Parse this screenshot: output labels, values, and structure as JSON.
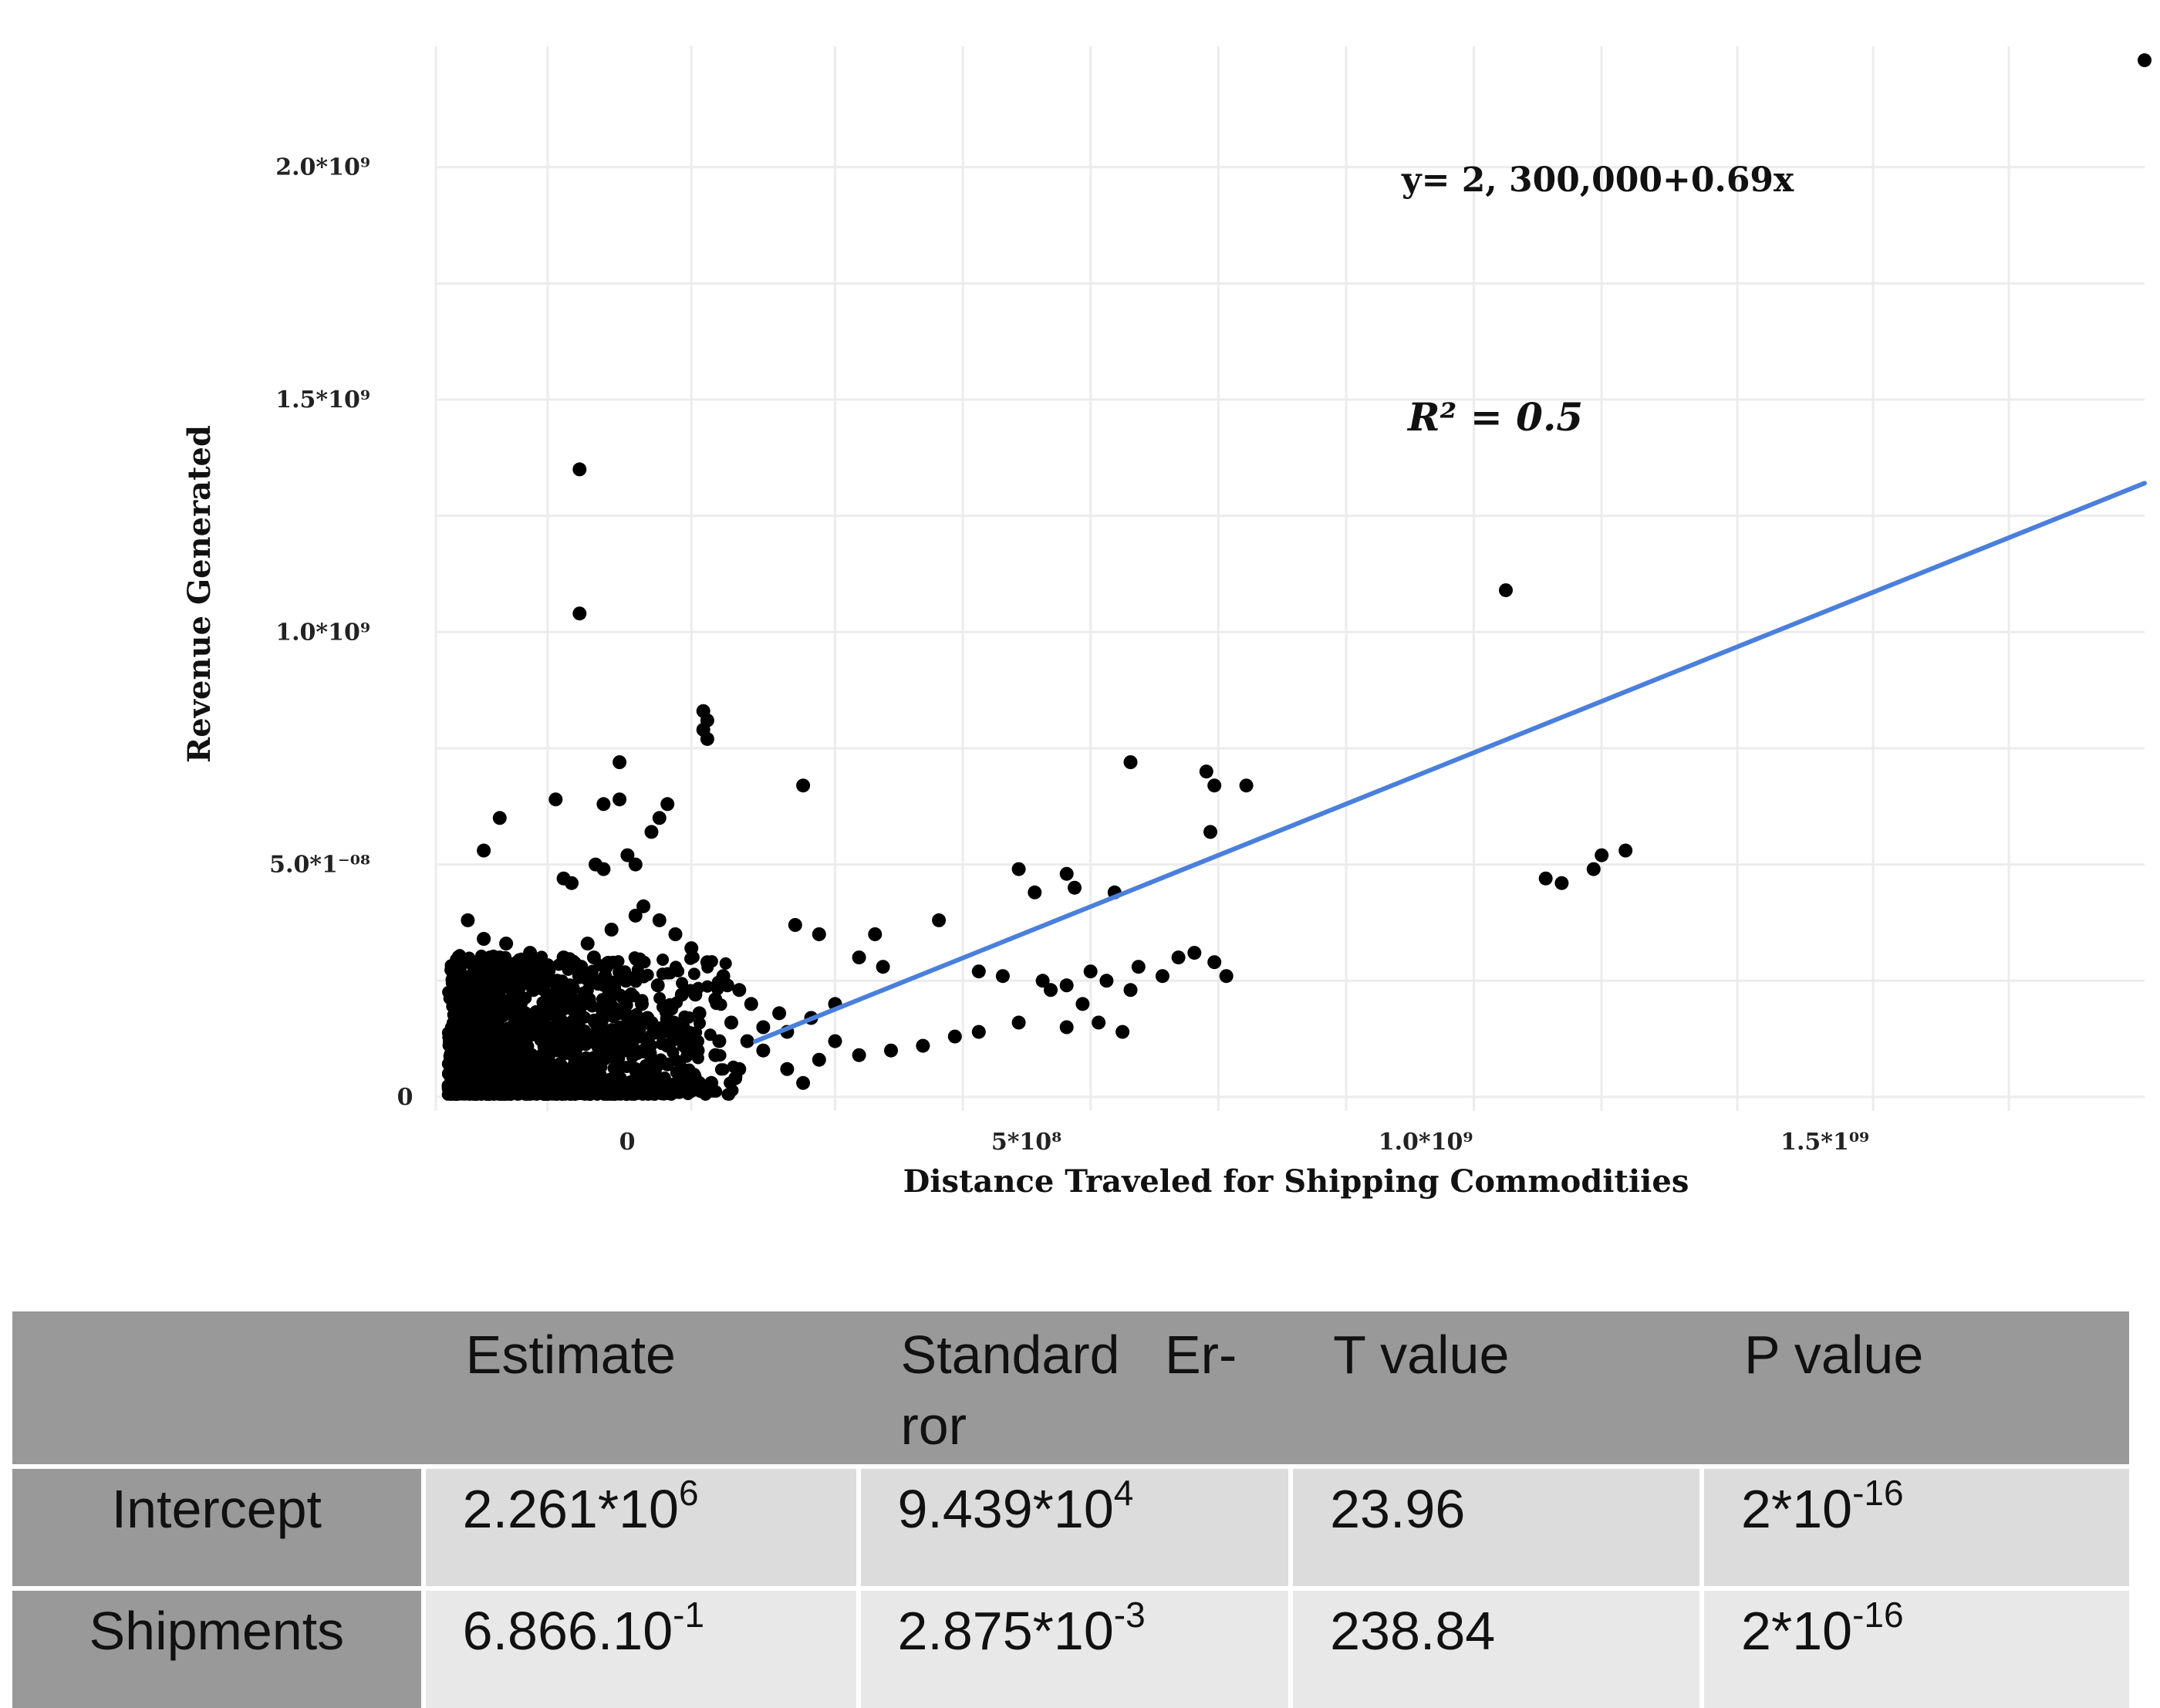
{
  "chart_data": {
    "type": "scatter",
    "title": "",
    "xlabel": "Distance Traveled for Shipping Commoditiies",
    "ylabel": "Revenue Generated",
    "xlim": [
      -230000000,
      1910000000
    ],
    "ylim": [
      -30000000,
      2260000000
    ],
    "x_ticks": [
      {
        "value": 0,
        "label": "0"
      },
      {
        "value": 500000000,
        "label": "5*10⁸"
      },
      {
        "value": 1000000000,
        "label": "1.0*10⁹"
      },
      {
        "value": 1500000000,
        "label": "1.5*1⁰⁹"
      }
    ],
    "y_ticks": [
      {
        "value": 0,
        "label": "0"
      },
      {
        "value": 500000000,
        "label": "5.0*1⁻⁰⁸"
      },
      {
        "value": 1000000000,
        "label": "1.0*10⁹"
      },
      {
        "value": 1500000000,
        "label": "1.5*10⁹"
      },
      {
        "value": 2000000000,
        "label": "2.0*10⁹"
      }
    ],
    "grid": true,
    "regression": {
      "intercept": 2300000,
      "slope": 0.69,
      "color": "#4a7fdc",
      "x_range": [
        170000000,
        1910000000
      ]
    },
    "annotations": {
      "equation": "y= 2, 300,000+0.69x",
      "r2": "R² = 0.5"
    },
    "point_color": "#000000",
    "series": [
      {
        "name": "observations",
        "points": [
          [
            -50000000,
            1350000000
          ],
          [
            -50000000,
            1040000000
          ],
          [
            1110000000,
            1090000000
          ],
          [
            1910000000,
            2230000000
          ],
          [
            105000000,
            830000000
          ],
          [
            110000000,
            810000000
          ],
          [
            105000000,
            790000000
          ],
          [
            110000000,
            770000000
          ],
          [
            640000000,
            720000000
          ],
          [
            735000000,
            700000000
          ],
          [
            745000000,
            670000000
          ],
          [
            785000000,
            670000000
          ],
          [
            230000000,
            670000000
          ],
          [
            740000000,
            570000000
          ],
          [
            0,
            720000000
          ],
          [
            0,
            640000000
          ],
          [
            -20000000,
            630000000
          ],
          [
            -80000000,
            640000000
          ],
          [
            -150000000,
            600000000
          ],
          [
            60000000,
            630000000
          ],
          [
            50000000,
            600000000
          ],
          [
            40000000,
            570000000
          ],
          [
            -170000000,
            530000000
          ],
          [
            10000000,
            520000000
          ],
          [
            20000000,
            500000000
          ],
          [
            -30000000,
            500000000
          ],
          [
            -70000000,
            470000000
          ],
          [
            -60000000,
            460000000
          ],
          [
            -20000000,
            490000000
          ],
          [
            1160000000,
            470000000
          ],
          [
            1180000000,
            460000000
          ],
          [
            1220000000,
            490000000
          ],
          [
            1230000000,
            520000000
          ],
          [
            1260000000,
            530000000
          ],
          [
            500000000,
            490000000
          ],
          [
            560000000,
            480000000
          ],
          [
            570000000,
            450000000
          ],
          [
            620000000,
            440000000
          ],
          [
            520000000,
            440000000
          ],
          [
            400000000,
            380000000
          ],
          [
            220000000,
            370000000
          ],
          [
            250000000,
            350000000
          ],
          [
            320000000,
            350000000
          ],
          [
            300000000,
            300000000
          ],
          [
            330000000,
            280000000
          ],
          [
            450000000,
            270000000
          ],
          [
            480000000,
            260000000
          ],
          [
            530000000,
            250000000
          ],
          [
            560000000,
            240000000
          ],
          [
            590000000,
            270000000
          ],
          [
            610000000,
            250000000
          ],
          [
            640000000,
            230000000
          ],
          [
            680000000,
            260000000
          ],
          [
            700000000,
            300000000
          ],
          [
            745000000,
            290000000
          ],
          [
            760000000,
            260000000
          ],
          [
            720000000,
            310000000
          ],
          [
            650000000,
            280000000
          ],
          [
            540000000,
            230000000
          ],
          [
            580000000,
            200000000
          ],
          [
            600000000,
            160000000
          ],
          [
            630000000,
            140000000
          ],
          [
            560000000,
            150000000
          ],
          [
            500000000,
            160000000
          ],
          [
            450000000,
            140000000
          ],
          [
            420000000,
            130000000
          ],
          [
            380000000,
            110000000
          ],
          [
            340000000,
            100000000
          ],
          [
            300000000,
            90000000
          ],
          [
            270000000,
            120000000
          ],
          [
            250000000,
            80000000
          ],
          [
            210000000,
            60000000
          ],
          [
            230000000,
            30000000
          ],
          [
            200000000,
            180000000
          ],
          [
            180000000,
            150000000
          ],
          [
            160000000,
            120000000
          ],
          [
            140000000,
            160000000
          ],
          [
            120000000,
            210000000
          ],
          [
            100000000,
            180000000
          ],
          [
            80000000,
            140000000
          ],
          [
            60000000,
            110000000
          ],
          [
            40000000,
            80000000
          ],
          [
            20000000,
            60000000
          ],
          [
            0,
            40000000
          ],
          [
            -20000000,
            20000000
          ],
          [
            -50000000,
            30000000
          ],
          [
            -80000000,
            60000000
          ],
          [
            -110000000,
            90000000
          ],
          [
            -140000000,
            120000000
          ],
          [
            -170000000,
            150000000
          ],
          [
            -190000000,
            180000000
          ],
          [
            -160000000,
            210000000
          ],
          [
            -130000000,
            240000000
          ],
          [
            -100000000,
            270000000
          ],
          [
            -70000000,
            300000000
          ],
          [
            -40000000,
            330000000
          ],
          [
            -10000000,
            360000000
          ],
          [
            20000000,
            390000000
          ],
          [
            -190000000,
            380000000
          ],
          [
            -170000000,
            340000000
          ],
          [
            -150000000,
            300000000
          ],
          [
            -120000000,
            260000000
          ],
          [
            -90000000,
            220000000
          ],
          [
            -60000000,
            190000000
          ],
          [
            -30000000,
            160000000
          ],
          [
            0,
            130000000
          ],
          [
            30000000,
            100000000
          ],
          [
            60000000,
            70000000
          ],
          [
            90000000,
            50000000
          ],
          [
            120000000,
            90000000
          ],
          [
            150000000,
            60000000
          ],
          [
            180000000,
            100000000
          ],
          [
            210000000,
            140000000
          ],
          [
            240000000,
            170000000
          ],
          [
            270000000,
            200000000
          ],
          [
            150000000,
            230000000
          ],
          [
            130000000,
            260000000
          ],
          [
            110000000,
            290000000
          ],
          [
            90000000,
            320000000
          ],
          [
            70000000,
            350000000
          ],
          [
            50000000,
            380000000
          ],
          [
            30000000,
            410000000
          ],
          [
            -200000000,
            20000000
          ],
          [
            -195000000,
            60000000
          ],
          [
            -185000000,
            100000000
          ],
          [
            -175000000,
            140000000
          ],
          [
            -165000000,
            40000000
          ],
          [
            -155000000,
            80000000
          ],
          [
            -145000000,
            20000000
          ],
          [
            -135000000,
            60000000
          ],
          [
            -125000000,
            100000000
          ],
          [
            -115000000,
            140000000
          ],
          [
            -105000000,
            30000000
          ],
          [
            -95000000,
            70000000
          ],
          [
            -85000000,
            110000000
          ],
          [
            -75000000,
            150000000
          ],
          [
            -65000000,
            40000000
          ],
          [
            -55000000,
            90000000
          ],
          [
            -45000000,
            130000000
          ],
          [
            -35000000,
            50000000
          ],
          [
            -25000000,
            100000000
          ],
          [
            -15000000,
            140000000
          ],
          [
            -5000000,
            60000000
          ],
          [
            5000000,
            100000000
          ],
          [
            15000000,
            20000000
          ],
          [
            25000000,
            130000000
          ],
          [
            35000000,
            170000000
          ],
          [
            45000000,
            30000000
          ],
          [
            55000000,
            150000000
          ],
          [
            65000000,
            190000000
          ],
          [
            75000000,
            40000000
          ],
          [
            85000000,
            120000000
          ],
          [
            95000000,
            220000000
          ],
          [
            115000000,
            30000000
          ],
          [
            125000000,
            120000000
          ],
          [
            135000000,
            240000000
          ],
          [
            145000000,
            40000000
          ],
          [
            165000000,
            200000000
          ],
          [
            -200000000,
            140000000
          ],
          [
            -198000000,
            100000000
          ],
          [
            -192000000,
            40000000
          ],
          [
            -188000000,
            220000000
          ],
          [
            -182000000,
            10000000
          ],
          [
            -178000000,
            260000000
          ],
          [
            -172000000,
            90000000
          ],
          [
            -168000000,
            190000000
          ],
          [
            -162000000,
            300000000
          ],
          [
            -158000000,
            10000000
          ],
          [
            -152000000,
            170000000
          ],
          [
            -148000000,
            250000000
          ],
          [
            -142000000,
            330000000
          ],
          [
            -138000000,
            20000000
          ],
          [
            -132000000,
            200000000
          ],
          [
            -128000000,
            290000000
          ],
          [
            -122000000,
            10000000
          ],
          [
            -118000000,
            180000000
          ],
          [
            -112000000,
            310000000
          ],
          [
            -108000000,
            230000000
          ],
          [
            -102000000,
            10000000
          ],
          [
            -98000000,
            160000000
          ],
          [
            -92000000,
            280000000
          ],
          [
            -88000000,
            20000000
          ],
          [
            -82000000,
            200000000
          ],
          [
            -78000000,
            250000000
          ],
          [
            -72000000,
            10000000
          ],
          [
            -68000000,
            120000000
          ],
          [
            -62000000,
            240000000
          ],
          [
            -58000000,
            20000000
          ],
          [
            -52000000,
            180000000
          ],
          [
            -48000000,
            280000000
          ],
          [
            -42000000,
            10000000
          ],
          [
            -38000000,
            210000000
          ],
          [
            -32000000,
            300000000
          ],
          [
            -28000000,
            20000000
          ],
          [
            -22000000,
            190000000
          ],
          [
            -18000000,
            260000000
          ],
          [
            -12000000,
            10000000
          ],
          [
            -8000000,
            220000000
          ],
          [
            -2000000,
            180000000
          ],
          [
            8000000,
            250000000
          ],
          [
            12000000,
            10000000
          ],
          [
            18000000,
            150000000
          ],
          [
            28000000,
            200000000
          ],
          [
            38000000,
            10000000
          ],
          [
            48000000,
            240000000
          ],
          [
            58000000,
            20000000
          ],
          [
            68000000,
            160000000
          ],
          [
            78000000,
            220000000
          ],
          [
            88000000,
            20000000
          ],
          [
            98000000,
            100000000
          ]
        ]
      }
    ]
  },
  "table": {
    "headers": [
      "",
      "Estimate",
      "Standard   Er-ror",
      "T value",
      "P value"
    ],
    "rows": [
      {
        "label": "Intercept",
        "estimate": {
          "base": "2.261*10",
          "exp": "6"
        },
        "std_error": {
          "base": "9.439*10",
          "exp": "4"
        },
        "t_value": "23.96",
        "p_value": {
          "base": "2*10",
          "exp": "-16"
        }
      },
      {
        "label": "Shipments",
        "estimate": {
          "base": "6.866.10",
          "exp": "-1"
        },
        "std_error": {
          "base": "2.875*10",
          "exp": "-3"
        },
        "t_value": "238.84",
        "p_value": {
          "base": "2*10",
          "exp": "-16"
        }
      }
    ]
  }
}
